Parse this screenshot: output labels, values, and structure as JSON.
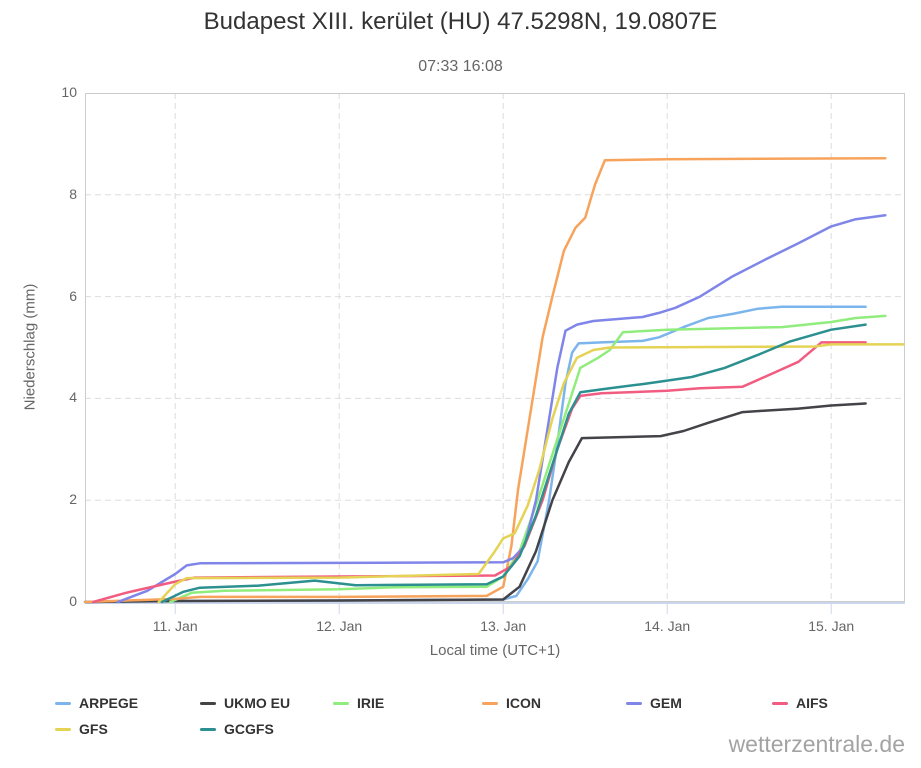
{
  "header": {
    "title": "Budapest XIII. kerület (HU) 47.5298N, 19.0807E",
    "subtitle": "07:33 16:08"
  },
  "axes": {
    "y": {
      "label": "Niederschlag (mm)",
      "ticks": [
        0,
        2,
        4,
        6,
        8,
        10
      ]
    },
    "x": {
      "label": "Local time (UTC+1)",
      "tick_labels": [
        "11. Jan",
        "12. Jan",
        "13. Jan",
        "14. Jan",
        "15. Jan"
      ],
      "tick_days": [
        11,
        12,
        13,
        14,
        15
      ]
    }
  },
  "watermark": "wetterzentrale.de",
  "colors": {
    "grid": "#dddddd",
    "plot_border": "#cccccc",
    "axis_line": "#ccd6eb",
    "title_text": "#333333",
    "label_text": "#666666",
    "watermark_text": "#a3a3a3"
  },
  "chart_data": {
    "type": "line",
    "title": "Budapest XIII. kerület (HU) 47.5298N, 19.0807E",
    "subtitle": "07:33 16:08",
    "xlabel": "Local time (UTC+1)",
    "ylabel": "Niederschlag (mm)",
    "x_unit": "day of January (decimal)",
    "xlim": [
      10.45,
      15.45
    ],
    "ylim": [
      0,
      10
    ],
    "grid": "dashed",
    "legend_position": "bottom-left",
    "series": [
      {
        "name": "ARPEGE",
        "color": "#7cb5ec",
        "points": [
          [
            10.45,
            0
          ],
          [
            11,
            0.02
          ],
          [
            12,
            0.03
          ],
          [
            13,
            0.05
          ],
          [
            13.08,
            0.12
          ],
          [
            13.15,
            0.45
          ],
          [
            13.21,
            0.8
          ],
          [
            13.28,
            2.0
          ],
          [
            13.33,
            3.1
          ],
          [
            13.38,
            4.3
          ],
          [
            13.42,
            4.9
          ],
          [
            13.46,
            5.08
          ],
          [
            13.6,
            5.1
          ],
          [
            13.85,
            5.13
          ],
          [
            13.95,
            5.2
          ],
          [
            14.1,
            5.4
          ],
          [
            14.25,
            5.58
          ],
          [
            14.4,
            5.66
          ],
          [
            14.55,
            5.76
          ],
          [
            14.7,
            5.8
          ],
          [
            15.21,
            5.8
          ]
        ]
      },
      {
        "name": "UKMO EU",
        "color": "#434348",
        "points": [
          [
            10.45,
            0
          ],
          [
            11,
            0.02
          ],
          [
            12,
            0.03
          ],
          [
            13,
            0.05
          ],
          [
            13.1,
            0.3
          ],
          [
            13.2,
            1.0
          ],
          [
            13.3,
            2.0
          ],
          [
            13.4,
            2.75
          ],
          [
            13.48,
            3.22
          ],
          [
            13.96,
            3.26
          ],
          [
            14.1,
            3.36
          ],
          [
            14.25,
            3.52
          ],
          [
            14.46,
            3.73
          ],
          [
            14.6,
            3.76
          ],
          [
            14.8,
            3.8
          ],
          [
            15,
            3.86
          ],
          [
            15.21,
            3.9
          ]
        ]
      },
      {
        "name": "IRIE",
        "color": "#90ed7d",
        "points": [
          [
            10.97,
            0
          ],
          [
            11.1,
            0.18
          ],
          [
            11.3,
            0.22
          ],
          [
            12,
            0.25
          ],
          [
            12.35,
            0.29
          ],
          [
            12.9,
            0.3
          ],
          [
            13,
            0.5
          ],
          [
            13.1,
            1.0
          ],
          [
            13.2,
            1.9
          ],
          [
            13.3,
            2.9
          ],
          [
            13.4,
            3.9
          ],
          [
            13.47,
            4.6
          ],
          [
            13.58,
            4.8
          ],
          [
            13.65,
            4.95
          ],
          [
            13.73,
            5.3
          ],
          [
            14,
            5.35
          ],
          [
            14.7,
            5.4
          ],
          [
            15,
            5.5
          ],
          [
            15.15,
            5.58
          ],
          [
            15.33,
            5.62
          ]
        ]
      },
      {
        "name": "ICON",
        "color": "#f7a35c",
        "points": [
          [
            10.45,
            0
          ],
          [
            11,
            0.06
          ],
          [
            11.15,
            0.1
          ],
          [
            12,
            0.1
          ],
          [
            12.9,
            0.12
          ],
          [
            13,
            0.3
          ],
          [
            13.05,
            1.1
          ],
          [
            13.09,
            2.2
          ],
          [
            13.14,
            3.2
          ],
          [
            13.19,
            4.2
          ],
          [
            13.24,
            5.2
          ],
          [
            13.3,
            6.0
          ],
          [
            13.37,
            6.9
          ],
          [
            13.44,
            7.35
          ],
          [
            13.5,
            7.55
          ],
          [
            13.56,
            8.2
          ],
          [
            13.62,
            8.68
          ],
          [
            14,
            8.7
          ],
          [
            15.33,
            8.72
          ]
        ]
      },
      {
        "name": "GEM",
        "color": "#8085e9",
        "points": [
          [
            10.65,
            0
          ],
          [
            10.83,
            0.22
          ],
          [
            11,
            0.55
          ],
          [
            11.07,
            0.72
          ],
          [
            11.15,
            0.76
          ],
          [
            13,
            0.78
          ],
          [
            13.06,
            0.86
          ],
          [
            13.13,
            1.1
          ],
          [
            13.2,
            2.0
          ],
          [
            13.27,
            3.4
          ],
          [
            13.33,
            4.6
          ],
          [
            13.38,
            5.33
          ],
          [
            13.45,
            5.45
          ],
          [
            13.55,
            5.52
          ],
          [
            13.7,
            5.56
          ],
          [
            13.85,
            5.6
          ],
          [
            13.95,
            5.68
          ],
          [
            14.05,
            5.78
          ],
          [
            14.2,
            6.0
          ],
          [
            14.4,
            6.4
          ],
          [
            14.6,
            6.73
          ],
          [
            14.8,
            7.05
          ],
          [
            15,
            7.38
          ],
          [
            15.15,
            7.52
          ],
          [
            15.33,
            7.6
          ]
        ]
      },
      {
        "name": "AIFS",
        "color": "#f15c80",
        "points": [
          [
            10.5,
            0
          ],
          [
            10.7,
            0.18
          ],
          [
            11,
            0.4
          ],
          [
            11.12,
            0.48
          ],
          [
            12,
            0.5
          ],
          [
            12.95,
            0.52
          ],
          [
            13.05,
            0.7
          ],
          [
            13.13,
            1.1
          ],
          [
            13.24,
            2.0
          ],
          [
            13.33,
            3.0
          ],
          [
            13.42,
            3.8
          ],
          [
            13.47,
            4.05
          ],
          [
            13.6,
            4.1
          ],
          [
            14,
            4.15
          ],
          [
            14.2,
            4.2
          ],
          [
            14.46,
            4.23
          ],
          [
            14.65,
            4.5
          ],
          [
            14.8,
            4.72
          ],
          [
            14.94,
            5.1
          ],
          [
            15.21,
            5.1
          ]
        ]
      },
      {
        "name": "GFS",
        "color": "#e4d354",
        "points": [
          [
            10.9,
            0
          ],
          [
            11,
            0.35
          ],
          [
            11.07,
            0.47
          ],
          [
            12,
            0.48
          ],
          [
            12.85,
            0.55
          ],
          [
            12.95,
            1.0
          ],
          [
            13,
            1.25
          ],
          [
            13.07,
            1.35
          ],
          [
            13.15,
            1.9
          ],
          [
            13.22,
            2.6
          ],
          [
            13.3,
            3.6
          ],
          [
            13.37,
            4.3
          ],
          [
            13.45,
            4.8
          ],
          [
            13.55,
            4.95
          ],
          [
            13.65,
            5.0
          ],
          [
            14.9,
            5.02
          ],
          [
            15,
            5.06
          ],
          [
            15.44,
            5.06
          ]
        ]
      },
      {
        "name": "GCGFS",
        "color": "#2b908f",
        "points": [
          [
            10.92,
            0
          ],
          [
            11.05,
            0.2
          ],
          [
            11.15,
            0.28
          ],
          [
            11.5,
            0.32
          ],
          [
            11.85,
            0.42
          ],
          [
            12.1,
            0.33
          ],
          [
            12.9,
            0.35
          ],
          [
            13,
            0.5
          ],
          [
            13.1,
            0.9
          ],
          [
            13.2,
            1.7
          ],
          [
            13.3,
            2.7
          ],
          [
            13.4,
            3.7
          ],
          [
            13.47,
            4.12
          ],
          [
            13.65,
            4.2
          ],
          [
            13.85,
            4.28
          ],
          [
            14,
            4.35
          ],
          [
            14.15,
            4.42
          ],
          [
            14.35,
            4.6
          ],
          [
            14.55,
            4.85
          ],
          [
            14.75,
            5.12
          ],
          [
            15,
            5.35
          ],
          [
            15.21,
            5.45
          ]
        ]
      }
    ]
  }
}
